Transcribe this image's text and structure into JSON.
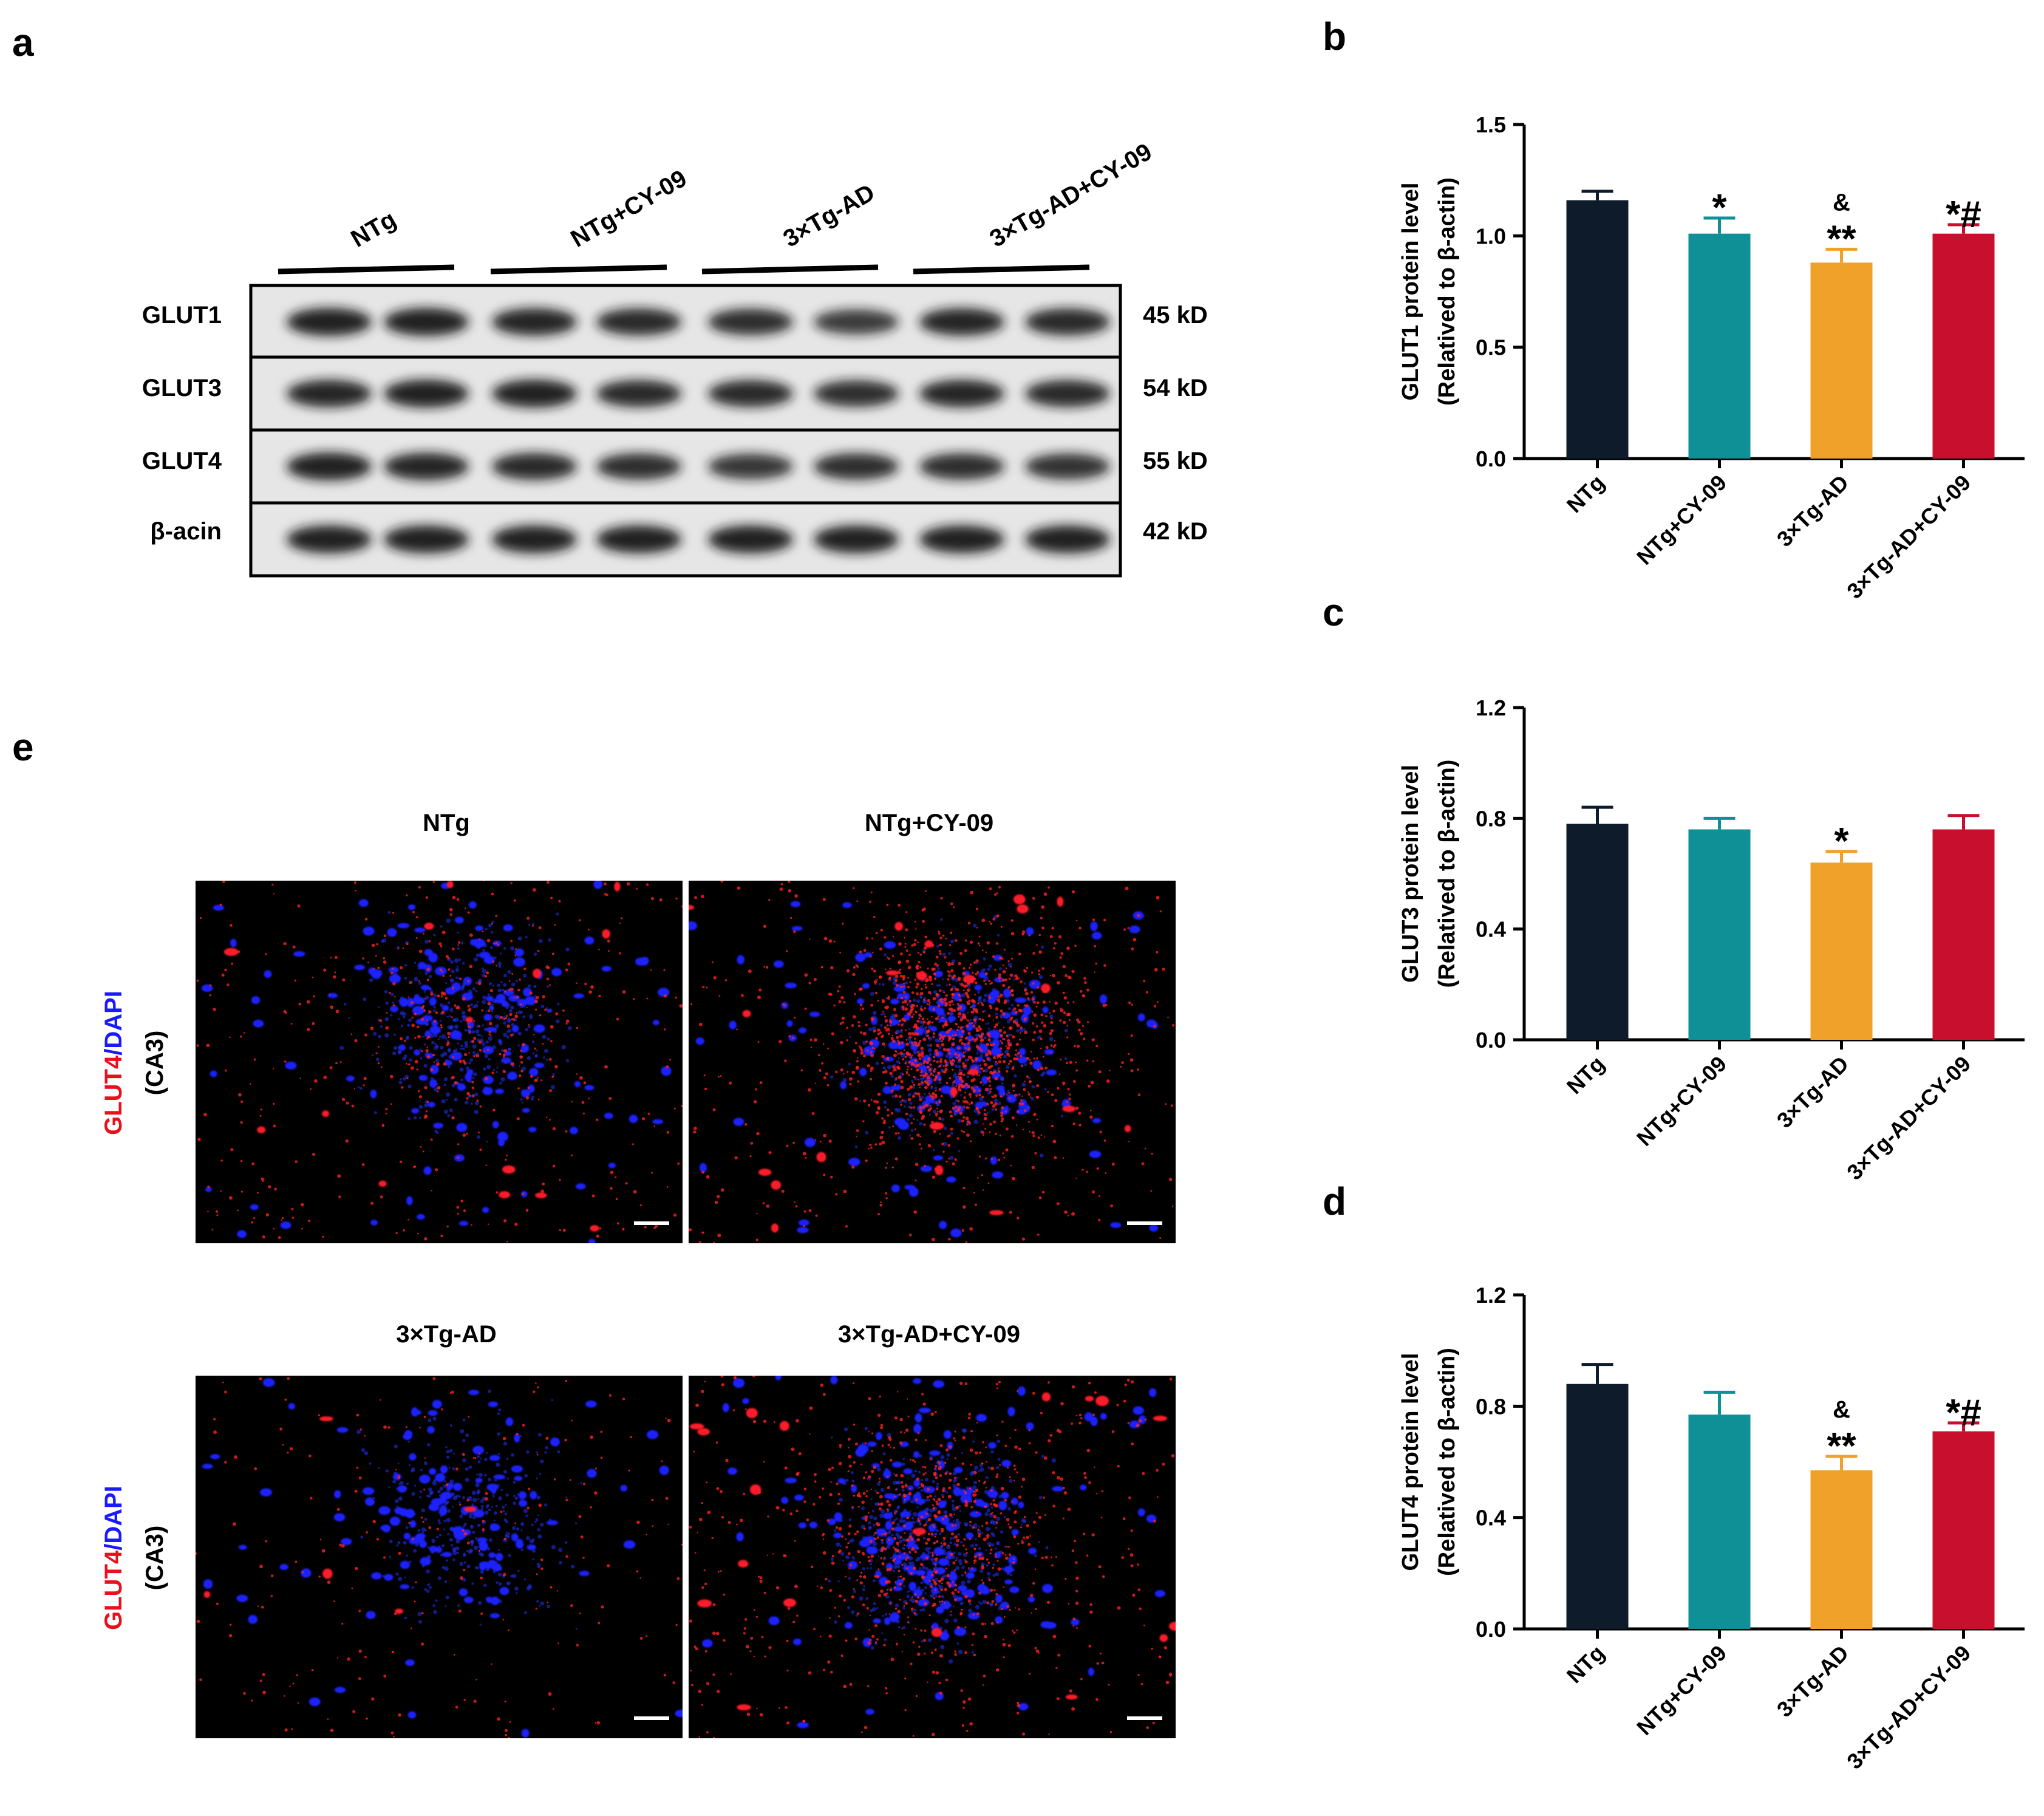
{
  "panels": {
    "a": {
      "letter": "a",
      "groups": [
        "NTg",
        "NTg+CY-09",
        "3×Tg-AD",
        "3×Tg-AD+CY-09"
      ],
      "rows": [
        {
          "label": "GLUT1",
          "kd": "45 kD"
        },
        {
          "label": "GLUT3",
          "kd": "54 kD"
        },
        {
          "label": "GLUT4",
          "kd": "55 kD"
        },
        {
          "label": "β-acin",
          "kd": "42 kD"
        }
      ]
    },
    "b": {
      "letter": "b"
    },
    "c": {
      "letter": "c"
    },
    "d": {
      "letter": "d"
    },
    "e": {
      "letter": "e",
      "titles": [
        "NTg",
        "NTg+CY-09",
        "3×Tg-AD",
        "3×Tg-AD+CY-09"
      ],
      "ylabel_red": "GLUT4",
      "ylabel_sep": "/",
      "ylabel_blue": "DAPI",
      "region": "(CA3)"
    }
  },
  "chart_data": [
    {
      "type": "bar",
      "panel": "b",
      "categories": [
        "NTg",
        "NTg+CY-09",
        "3×Tg-AD",
        "3×Tg-AD+CY-09"
      ],
      "values": [
        1.16,
        1.01,
        0.88,
        1.01
      ],
      "errors": [
        0.04,
        0.07,
        0.06,
        0.04
      ],
      "colors": [
        "#0d1b2a",
        "#0f8f96",
        "#f0a12a",
        "#c8102e"
      ],
      "annotations": [
        [],
        [
          "*"
        ],
        [
          "&",
          "**"
        ],
        [
          "*#"
        ]
      ],
      "ylabel": [
        "GLUT1 protein level",
        "(Relatived to β-actin)"
      ],
      "ylim": [
        0,
        1.5
      ],
      "yticks": [
        0,
        0.5,
        1.0,
        1.5
      ],
      "ytick_labels": [
        "0.0",
        "0.5",
        "1.0",
        "1.5"
      ]
    },
    {
      "type": "bar",
      "panel": "c",
      "categories": [
        "NTg",
        "NTg+CY-09",
        "3×Tg-AD",
        "3×Tg-AD+CY-09"
      ],
      "values": [
        0.78,
        0.76,
        0.64,
        0.76
      ],
      "errors": [
        0.06,
        0.04,
        0.04,
        0.05
      ],
      "colors": [
        "#0d1b2a",
        "#0f8f96",
        "#f0a12a",
        "#c8102e"
      ],
      "annotations": [
        [],
        [],
        [
          "*"
        ],
        []
      ],
      "ylabel": [
        "GLUT3 protein level",
        "(Relatived to β-actin)"
      ],
      "ylim": [
        0,
        1.2
      ],
      "yticks": [
        0,
        0.4,
        0.8,
        1.2
      ],
      "ytick_labels": [
        "0.0",
        "0.4",
        "0.8",
        "1.2"
      ]
    },
    {
      "type": "bar",
      "panel": "d",
      "categories": [
        "NTg",
        "NTg+CY-09",
        "3×Tg-AD",
        "3×Tg-AD+CY-09"
      ],
      "values": [
        0.88,
        0.77,
        0.57,
        0.71
      ],
      "errors": [
        0.07,
        0.08,
        0.05,
        0.03
      ],
      "colors": [
        "#0d1b2a",
        "#0f8f96",
        "#f0a12a",
        "#c8102e"
      ],
      "annotations": [
        [],
        [],
        [
          "&",
          "**"
        ],
        [
          "*#"
        ]
      ],
      "ylabel": [
        "GLUT4 protein level",
        "(Relatived to β-actin)"
      ],
      "ylim": [
        0,
        1.2
      ],
      "yticks": [
        0,
        0.4,
        0.8,
        1.2
      ],
      "ytick_labels": [
        "0.0",
        "0.4",
        "0.8",
        "1.2"
      ]
    }
  ]
}
